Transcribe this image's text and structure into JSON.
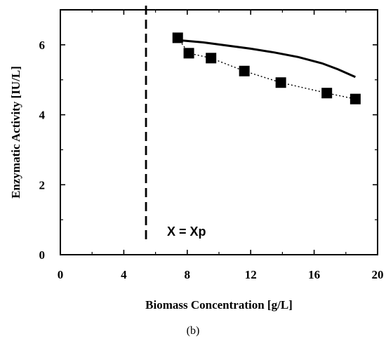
{
  "chart_data": {
    "type": "scatter",
    "xlabel": "Biomass Concentration [g/L]",
    "ylabel": "Enzymatic Activity [IU/L]",
    "xlim": [
      0,
      20
    ],
    "ylim": [
      0,
      7
    ],
    "x_ticks": [
      "0",
      "4",
      "8",
      "12",
      "16",
      "20"
    ],
    "y_ticks": [
      "0",
      "2",
      "4",
      "6"
    ],
    "grid": false,
    "series": [
      {
        "marker": "square",
        "color": "#000000",
        "x": [
          7.4,
          8.1,
          9.5,
          11.6,
          13.9,
          16.8,
          18.6
        ],
        "y": [
          6.2,
          5.76,
          5.62,
          5.25,
          4.92,
          4.62,
          4.45
        ]
      },
      {
        "style": "dotted-line",
        "color": "#000000",
        "x": [
          7.4,
          8.1,
          9.5,
          11.6,
          13.9,
          16.8,
          18.6
        ],
        "y": [
          6.2,
          5.76,
          5.62,
          5.25,
          4.92,
          4.62,
          4.45
        ]
      },
      {
        "style": "solid-line",
        "color": "#000000",
        "x": [
          7.5,
          9,
          10.5,
          12,
          13.5,
          15,
          16.5,
          17.5,
          18.6
        ],
        "y": [
          6.13,
          6.07,
          5.98,
          5.89,
          5.78,
          5.65,
          5.47,
          5.3,
          5.08
        ]
      }
    ],
    "vline": {
      "x": 5.4,
      "style": "dashed",
      "label": "X = Xp"
    },
    "panel_label": "(b)"
  }
}
